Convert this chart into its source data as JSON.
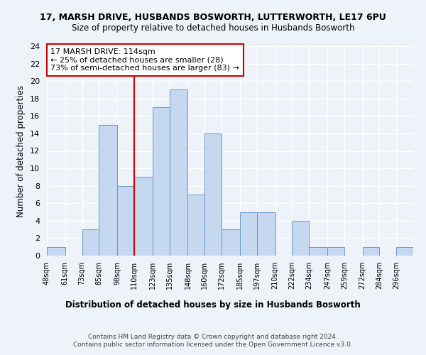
{
  "title_line1": "17, MARSH DRIVE, HUSBANDS BOSWORTH, LUTTERWORTH, LE17 6PU",
  "title_line2": "Size of property relative to detached houses in Husbands Bosworth",
  "xlabel": "Distribution of detached houses by size in Husbands Bosworth",
  "ylabel": "Number of detached properties",
  "bin_edges": [
    48,
    61,
    73,
    85,
    98,
    110,
    123,
    135,
    148,
    160,
    172,
    185,
    197,
    210,
    222,
    234,
    247,
    259,
    272,
    284,
    296
  ],
  "bin_labels": [
    "48sqm",
    "61sqm",
    "73sqm",
    "85sqm",
    "98sqm",
    "110sqm",
    "123sqm",
    "135sqm",
    "148sqm",
    "160sqm",
    "172sqm",
    "185sqm",
    "197sqm",
    "210sqm",
    "222sqm",
    "234sqm",
    "247sqm",
    "259sqm",
    "272sqm",
    "284sqm",
    "296sqm"
  ],
  "counts": [
    1,
    0,
    3,
    15,
    8,
    9,
    17,
    19,
    7,
    14,
    3,
    5,
    5,
    0,
    4,
    1,
    1,
    0,
    1,
    0,
    1
  ],
  "bar_color": "#c5d8f0",
  "bar_edge_color": "#6699cc",
  "marker_value": 110,
  "marker_color": "#cc0000",
  "annotation_title": "17 MARSH DRIVE: 114sqm",
  "annotation_line1": "← 25% of detached houses are smaller (28)",
  "annotation_line2": "73% of semi-detached houses are larger (83) →",
  "annotation_box_color": "#ffffff",
  "annotation_box_edge": "#cc0000",
  "ylim": [
    0,
    24
  ],
  "yticks": [
    0,
    2,
    4,
    6,
    8,
    10,
    12,
    14,
    16,
    18,
    20,
    22,
    24
  ],
  "footer_line1": "Contains HM Land Registry data © Crown copyright and database right 2024.",
  "footer_line2": "Contains public sector information licensed under the Open Government Licence v3.0.",
  "background_color": "#eef2f9"
}
